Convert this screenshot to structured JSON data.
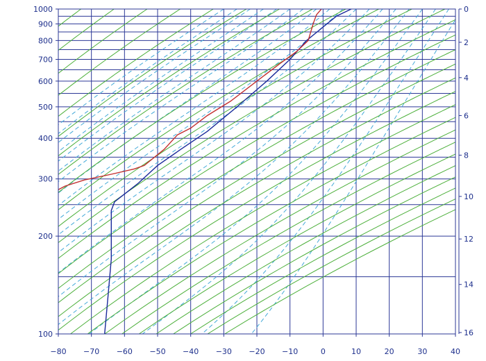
{
  "chart_data": {
    "type": "line",
    "diagram": "stuve",
    "x_axis": {
      "unit": "temperature",
      "min": -80,
      "max": 40,
      "step": 10,
      "ticks": [
        "−80",
        "−70",
        "−60",
        "−50",
        "−40",
        "−30",
        "−20",
        "−10",
        "0",
        "10",
        "20",
        "30",
        "40"
      ]
    },
    "y_axis_left": {
      "unit": "pressure",
      "scale": "log-decreasing",
      "min": 1000,
      "max": 100,
      "ticks": [
        {
          "p": 100,
          "label": "100"
        },
        {
          "p": 200,
          "label": "200"
        },
        {
          "p": 300,
          "label": "300"
        },
        {
          "p": 400,
          "label": "400"
        },
        {
          "p": 500,
          "label": "500"
        },
        {
          "p": 600,
          "label": "600"
        },
        {
          "p": 700,
          "label": "700"
        },
        {
          "p": 800,
          "label": "800"
        },
        {
          "p": 900,
          "label": "900"
        },
        {
          "p": 1000,
          "label": "1000"
        }
      ],
      "grid_levels": [
        100,
        150,
        200,
        250,
        300,
        350,
        400,
        450,
        500,
        550,
        600,
        650,
        700,
        750,
        800,
        850,
        900,
        950,
        1000
      ]
    },
    "y_axis_right": {
      "unit": "height",
      "min": 0,
      "max": 16,
      "ticks": [
        {
          "p": 1000,
          "label": "0"
        },
        {
          "p": 790,
          "label": "2"
        },
        {
          "p": 615,
          "label": "4"
        },
        {
          "p": 470,
          "label": "6"
        },
        {
          "p": 355,
          "label": "8"
        },
        {
          "p": 265,
          "label": "10"
        },
        {
          "p": 196,
          "label": "12"
        },
        {
          "p": 142,
          "label": "14"
        },
        {
          "p": 101,
          "label": "16"
        }
      ]
    },
    "grid": true,
    "series": [
      {
        "color": "#1a2a9a",
        "role": "temperature",
        "points": [
          [
            8.5,
            1000
          ],
          [
            4,
            950
          ],
          [
            0,
            880
          ],
          [
            -5,
            800
          ],
          [
            -10,
            700
          ],
          [
            -17,
            600
          ],
          [
            -26,
            500
          ],
          [
            -35,
            420
          ],
          [
            -43,
            370
          ],
          [
            -50,
            330
          ],
          [
            -56,
            290
          ],
          [
            -63,
            255
          ],
          [
            -64,
            240
          ],
          [
            -64,
            200
          ],
          [
            -64,
            170
          ],
          [
            -65,
            130
          ],
          [
            -66,
            100
          ]
        ]
      },
      {
        "color": "#c23030",
        "role": "dewpoint",
        "points": [
          [
            -0.5,
            1000
          ],
          [
            -2,
            960
          ],
          [
            -3,
            900
          ],
          [
            -4.5,
            800
          ],
          [
            -8,
            740
          ],
          [
            -13,
            680
          ],
          [
            -20,
            600
          ],
          [
            -28,
            520
          ],
          [
            -35,
            470
          ],
          [
            -40,
            430
          ],
          [
            -44,
            410
          ],
          [
            -48,
            370
          ],
          [
            -54,
            330
          ],
          [
            -57,
            322
          ],
          [
            -64,
            310
          ],
          [
            -72,
            298
          ],
          [
            -78,
            285
          ],
          [
            -80,
            278
          ]
        ]
      }
    ],
    "colors": {
      "grid": "#2b3796",
      "dry_adiabats": "#4caf3a",
      "moist_adiabats": "#43a9d8",
      "temperature": "#1a2a9a",
      "dewpoint": "#c23030",
      "axis_text": "#1d2f8c"
    }
  }
}
